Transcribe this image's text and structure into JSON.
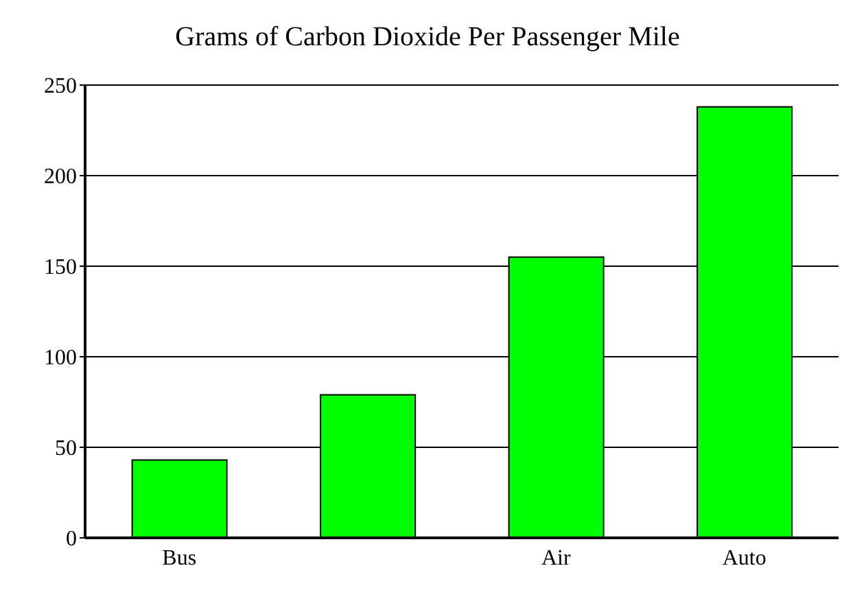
{
  "chart_data": {
    "type": "bar",
    "title": "Grams of Carbon Dioxide Per Passenger Mile",
    "categories": [
      "Bus",
      null,
      "Air",
      "Auto"
    ],
    "values": [
      43,
      79,
      155,
      238
    ],
    "color": "#00ff00",
    "ylim": [
      0,
      250
    ],
    "yticks": [
      0,
      50,
      100,
      150,
      200,
      250
    ],
    "grid": "y"
  }
}
